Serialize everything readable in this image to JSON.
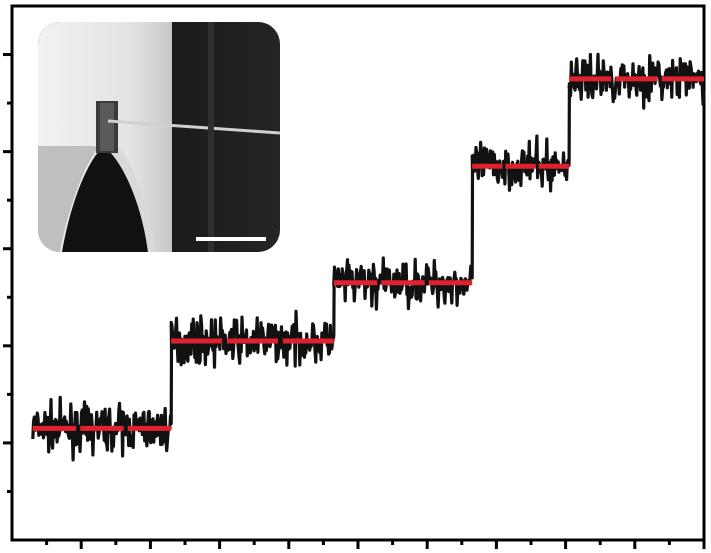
{
  "chart_data": {
    "type": "line",
    "title": "",
    "xlabel": "",
    "ylabel": "",
    "xlim": [
      0,
      20
    ],
    "ylim": [
      0,
      11
    ],
    "grid": false,
    "x_ticks": [
      2,
      4,
      6,
      8,
      10,
      12,
      14,
      16,
      18,
      20
    ],
    "y_ticks": [
      1,
      2,
      3,
      4,
      5,
      6,
      7,
      8,
      9,
      10
    ],
    "series": [
      {
        "values_note": "",
        "step_levels": [
          {
            "x_start": 0.6,
            "x_end": 4.6,
            "y": 2.3
          },
          {
            "x_start": 4.6,
            "x_end": 9.3,
            "y": 4.1
          },
          {
            "x_start": 9.3,
            "x_end": 13.3,
            "y": 5.3
          },
          {
            "x_start": 13.3,
            "x_end": 16.1,
            "y": 7.7
          },
          {
            "x_start": 16.1,
            "x_end": 20.0,
            "y": 9.5
          }
        ]
      }
    ],
    "colors": {
      "trace": "#111111",
      "fit_segments": "#e0222e",
      "axes": "#000000"
    }
  },
  "inset": {
    "description": "",
    "scale_bar": true,
    "colors": {
      "background": "#1c1c1c",
      "post": "#e8e8e8",
      "cantilever": "#cfcfcf",
      "scale_bar": "#ffffff"
    }
  }
}
